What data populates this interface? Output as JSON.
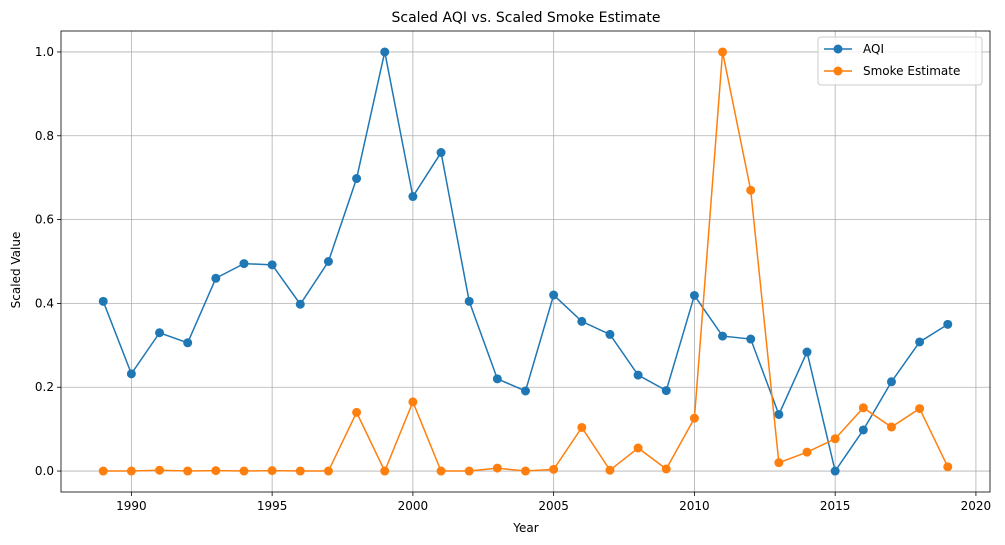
{
  "chart_data": {
    "type": "line",
    "title": "Scaled AQI vs. Scaled Smoke Estimate",
    "xlabel": "Year",
    "ylabel": "Scaled Value",
    "xlim": [
      1987.5,
      2020.5
    ],
    "ylim": [
      -0.05,
      1.05
    ],
    "xticks": [
      1990,
      1995,
      2000,
      2005,
      2010,
      2015,
      2020
    ],
    "yticks": [
      0.0,
      0.2,
      0.4,
      0.6,
      0.8,
      1.0
    ],
    "ytick_labels": [
      "0.0",
      "0.2",
      "0.4",
      "0.6",
      "0.8",
      "1.0"
    ],
    "grid": true,
    "legend_position": "top-right",
    "x": [
      1989,
      1990,
      1991,
      1992,
      1993,
      1994,
      1995,
      1996,
      1997,
      1998,
      1999,
      2000,
      2001,
      2002,
      2003,
      2004,
      2005,
      2006,
      2007,
      2008,
      2009,
      2010,
      2011,
      2012,
      2013,
      2014,
      2015,
      2016,
      2017,
      2018,
      2019
    ],
    "series": [
      {
        "name": "AQI",
        "color": "#1f77b4",
        "values": [
          0.405,
          0.232,
          0.33,
          0.306,
          0.46,
          0.495,
          0.492,
          0.398,
          0.5,
          0.698,
          1.0,
          0.655,
          0.76,
          0.405,
          0.22,
          0.191,
          0.42,
          0.357,
          0.326,
          0.229,
          0.192,
          0.419,
          0.322,
          0.315,
          0.135,
          0.284,
          0.0,
          0.098,
          0.213,
          0.308,
          0.35
        ]
      },
      {
        "name": "Smoke Estimate",
        "color": "#ff7f0e",
        "values": [
          0.0,
          0.0,
          0.002,
          0.0,
          0.001,
          0.0,
          0.001,
          0.0,
          0.0,
          0.14,
          0.0,
          0.165,
          0.0,
          0.0,
          0.007,
          0.0,
          0.004,
          0.104,
          0.002,
          0.055,
          0.005,
          0.126,
          1.0,
          0.67,
          0.02,
          0.045,
          0.077,
          0.151,
          0.105,
          0.149,
          0.01
        ]
      }
    ]
  }
}
